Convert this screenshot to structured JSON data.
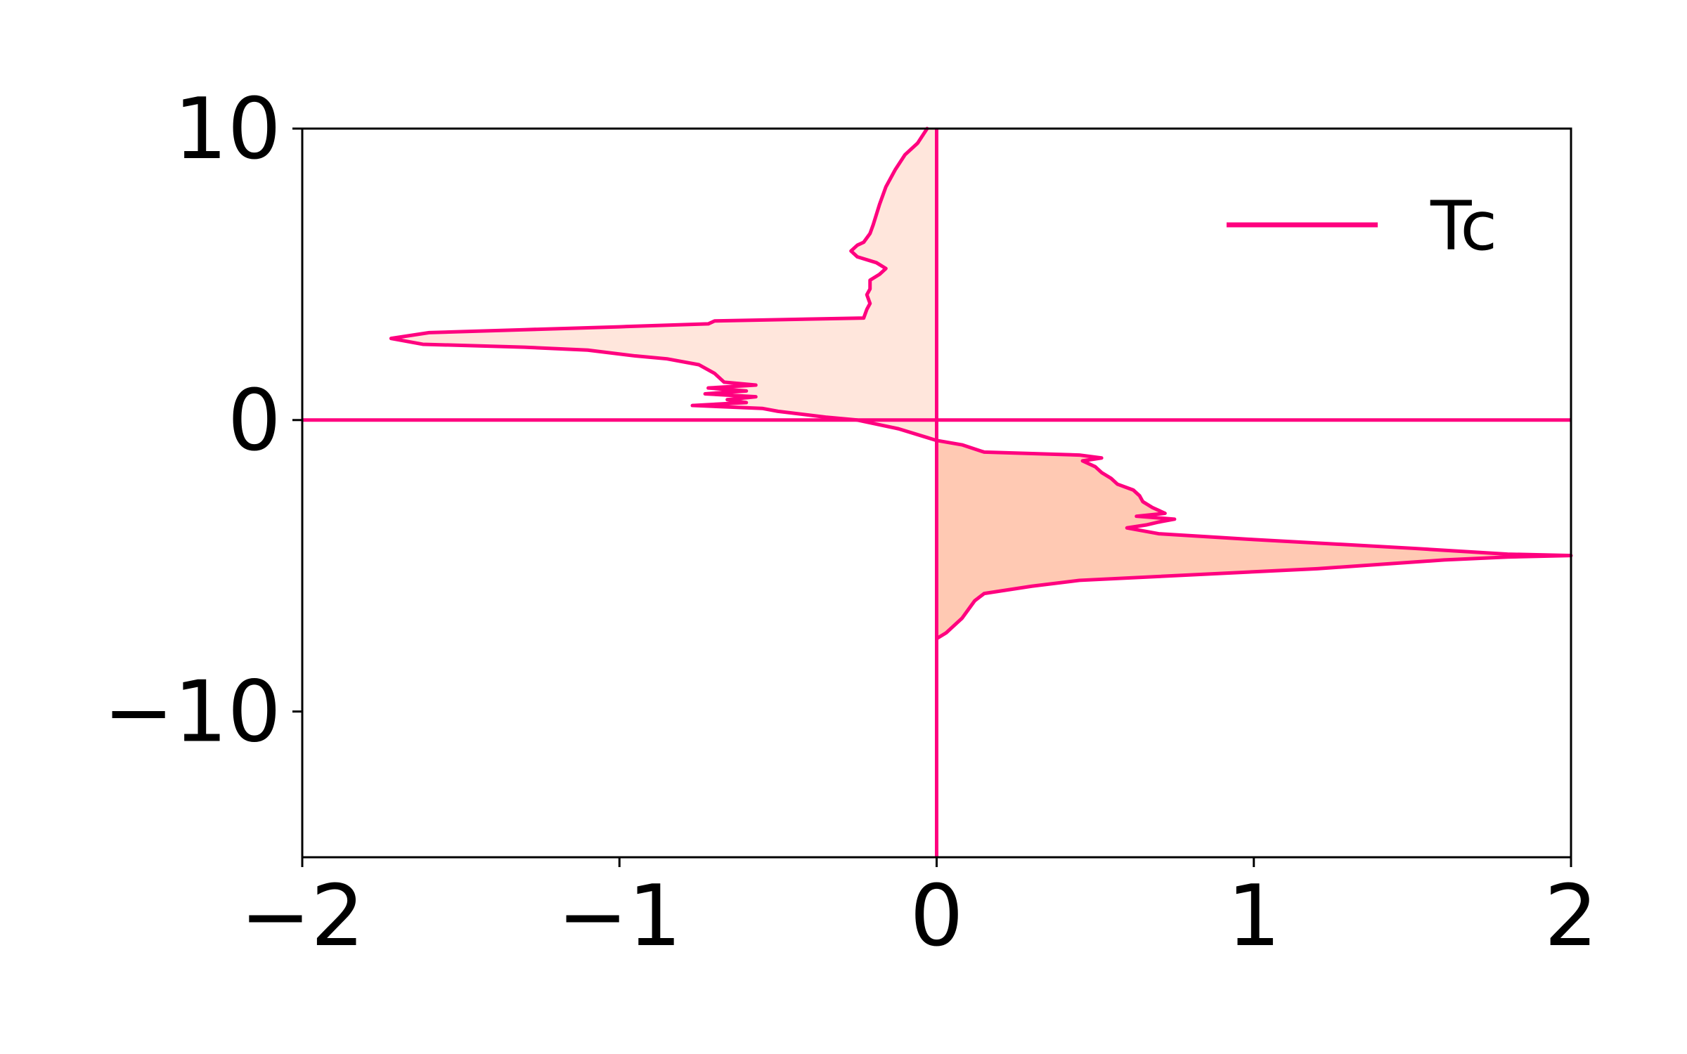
{
  "chart_data": {
    "type": "area",
    "title": "",
    "xlabel": "",
    "ylabel": "",
    "xlim": [
      -2,
      2
    ],
    "ylim": [
      -15,
      10
    ],
    "xticks": [
      -2,
      -1,
      0,
      1,
      2
    ],
    "yticks": [
      -10,
      0,
      10
    ],
    "xtick_labels": [
      "−2",
      "−1",
      "0",
      "1",
      "2"
    ],
    "ytick_labels": [
      "−10",
      "0",
      "10"
    ],
    "grid": false,
    "legend_position": "upper-right",
    "colors": {
      "line": "#ff007f",
      "fill_up": "#ffe6dc",
      "fill_down": "#ffc9b3"
    },
    "reference_lines": {
      "x": 0,
      "y": 0
    },
    "series": [
      {
        "name": "Tc",
        "role": "spin-up",
        "points": [
          [
            -0.03,
            10.0
          ],
          [
            -0.06,
            9.5
          ],
          [
            -0.1,
            9.1
          ],
          [
            -0.13,
            8.6
          ],
          [
            -0.16,
            8.0
          ],
          [
            -0.18,
            7.4
          ],
          [
            -0.2,
            6.7
          ],
          [
            -0.21,
            6.4
          ],
          [
            -0.23,
            6.1
          ],
          [
            -0.25,
            6.0
          ],
          [
            -0.27,
            5.8
          ],
          [
            -0.25,
            5.6
          ],
          [
            -0.19,
            5.4
          ],
          [
            -0.16,
            5.2
          ],
          [
            -0.18,
            5.0
          ],
          [
            -0.21,
            4.8
          ],
          [
            -0.21,
            4.5
          ],
          [
            -0.22,
            4.3
          ],
          [
            -0.21,
            4.0
          ],
          [
            -0.22,
            3.8
          ],
          [
            -0.23,
            3.5
          ],
          [
            -0.7,
            3.4
          ],
          [
            -0.72,
            3.3
          ],
          [
            -1.0,
            3.2
          ],
          [
            -1.3,
            3.1
          ],
          [
            -1.6,
            3.0
          ],
          [
            -1.72,
            2.8
          ],
          [
            -1.67,
            2.7
          ],
          [
            -1.62,
            2.6
          ],
          [
            -1.3,
            2.5
          ],
          [
            -1.1,
            2.4
          ],
          [
            -0.95,
            2.2
          ],
          [
            -0.85,
            2.1
          ],
          [
            -0.75,
            1.9
          ],
          [
            -0.7,
            1.6
          ],
          [
            -0.67,
            1.3
          ],
          [
            -0.57,
            1.2
          ],
          [
            -0.72,
            1.1
          ],
          [
            -0.6,
            1.0
          ],
          [
            -0.73,
            0.9
          ],
          [
            -0.57,
            0.8
          ],
          [
            -0.66,
            0.7
          ],
          [
            -0.6,
            0.6
          ],
          [
            -0.77,
            0.5
          ],
          [
            -0.55,
            0.4
          ],
          [
            -0.5,
            0.3
          ],
          [
            -0.35,
            0.1
          ],
          [
            -0.25,
            0.0
          ],
          [
            -0.12,
            -0.3
          ],
          [
            -0.03,
            -0.6
          ],
          [
            0.0,
            -0.7
          ]
        ]
      },
      {
        "name": "",
        "role": "spin-down",
        "points": [
          [
            0.0,
            -0.7
          ],
          [
            0.08,
            -0.85
          ],
          [
            0.15,
            -1.1
          ],
          [
            0.45,
            -1.2
          ],
          [
            0.52,
            -1.3
          ],
          [
            0.46,
            -1.4
          ],
          [
            0.5,
            -1.6
          ],
          [
            0.52,
            -1.8
          ],
          [
            0.55,
            -2.0
          ],
          [
            0.57,
            -2.2
          ],
          [
            0.62,
            -2.4
          ],
          [
            0.64,
            -2.6
          ],
          [
            0.65,
            -2.8
          ],
          [
            0.68,
            -3.0
          ],
          [
            0.72,
            -3.2
          ],
          [
            0.63,
            -3.3
          ],
          [
            0.75,
            -3.4
          ],
          [
            0.7,
            -3.5
          ],
          [
            0.66,
            -3.6
          ],
          [
            0.6,
            -3.7
          ],
          [
            0.7,
            -3.9
          ],
          [
            1.0,
            -4.1
          ],
          [
            1.5,
            -4.4
          ],
          [
            1.8,
            -4.6
          ],
          [
            2.0,
            -4.65
          ],
          [
            1.8,
            -4.7
          ],
          [
            1.6,
            -4.8
          ],
          [
            1.2,
            -5.1
          ],
          [
            0.45,
            -5.5
          ],
          [
            0.3,
            -5.7
          ],
          [
            0.15,
            -5.95
          ],
          [
            0.12,
            -6.2
          ],
          [
            0.08,
            -6.8
          ],
          [
            0.03,
            -7.3
          ],
          [
            0.0,
            -7.5
          ]
        ]
      }
    ],
    "legend": [
      "Tc"
    ]
  }
}
